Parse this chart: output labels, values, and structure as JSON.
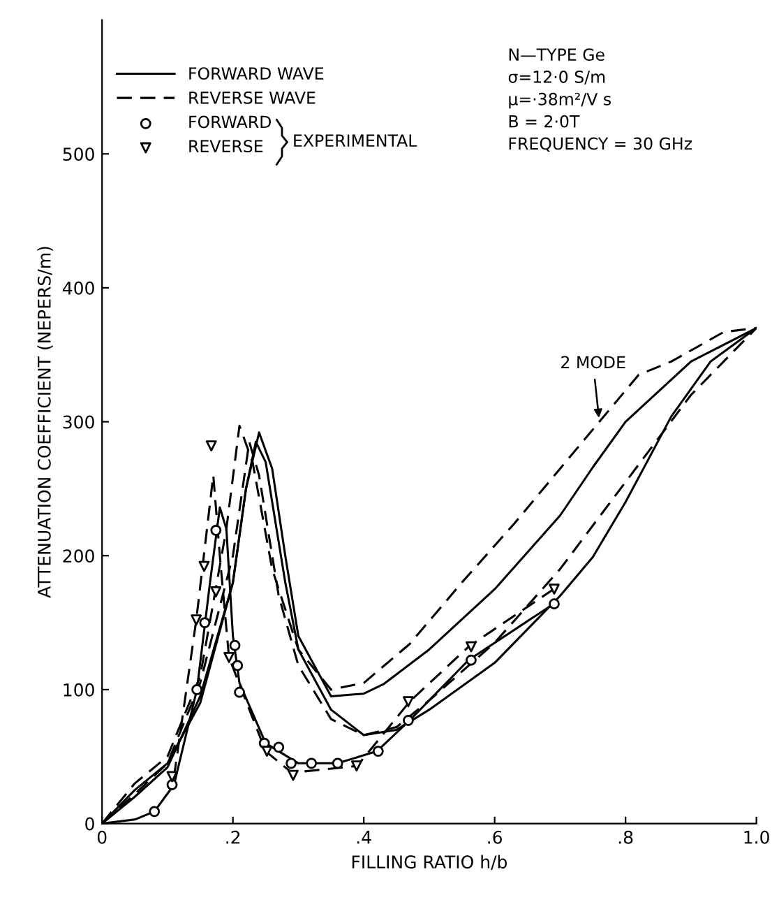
{
  "chart_data": {
    "type": "line",
    "xlabel": "FILLING RATIO h/b",
    "ylabel": "ATTENUATION COEFFICIENT (NEPERS/m)",
    "xlim": [
      0,
      1.0
    ],
    "ylim": [
      0,
      600
    ],
    "xticks": [
      0,
      {
        "value": 0.2,
        "label": ".2"
      },
      {
        "value": 0.4,
        "label": ".4"
      },
      {
        "value": 0.6,
        "label": ".6"
      },
      {
        "value": 0.8,
        "label": ".8"
      },
      {
        "value": 1.0,
        "label": "1.0"
      }
    ],
    "yticks": [
      0,
      100,
      200,
      300,
      400,
      500
    ],
    "grid": false,
    "legend": "top left",
    "series": [
      {
        "name": "FORWARD WAVE",
        "color": "#000000",
        "line_style": "solid",
        "x": [
          0,
          0.05,
          0.1,
          0.15,
          0.2,
          0.22,
          0.24,
          0.26,
          0.28,
          0.3,
          0.35,
          0.4,
          0.43,
          0.5,
          0.6,
          0.7,
          0.75,
          0.8,
          0.9,
          1.0
        ],
        "values": [
          0,
          25,
          45,
          90,
          180,
          250,
          292,
          265,
          200,
          140,
          95,
          97,
          104,
          130,
          175,
          230,
          266,
          300,
          345,
          370
        ]
      },
      {
        "color": "#000000",
        "line_style": "solid",
        "x": [
          0,
          0.05,
          0.1,
          0.15,
          0.2,
          0.22,
          0.235,
          0.25,
          0.28,
          0.3,
          0.35,
          0.4,
          0.45,
          0.5,
          0.6,
          0.7,
          0.75,
          0.8,
          0.87,
          0.93,
          1.0
        ],
        "values": [
          0,
          20,
          42,
          95,
          180,
          250,
          285,
          270,
          180,
          130,
          85,
          66,
          70,
          85,
          120,
          170,
          199,
          240,
          304,
          345,
          370
        ]
      },
      {
        "name": "REVERSE WAVE",
        "color": "#000000",
        "line_style": "dashed",
        "x": [
          0,
          0.05,
          0.1,
          0.15,
          0.19,
          0.21,
          0.23,
          0.26,
          0.3,
          0.35,
          0.4,
          0.47,
          0.55,
          0.63,
          0.7,
          0.76,
          0.82,
          0.87,
          0.95,
          1.0
        ],
        "values": [
          0,
          30,
          50,
          110,
          220,
          297,
          270,
          190,
          130,
          100,
          105,
          134,
          180,
          224,
          265,
          300,
          335,
          345,
          367,
          370
        ]
      },
      {
        "color": "#000000",
        "line_style": "dashed",
        "x": [
          0,
          0.05,
          0.1,
          0.15,
          0.2,
          0.225,
          0.24,
          0.27,
          0.3,
          0.35,
          0.4,
          0.45,
          0.5,
          0.6,
          0.7,
          0.8,
          0.9,
          1.0
        ],
        "values": [
          0,
          22,
          45,
          105,
          200,
          285,
          260,
          170,
          118,
          78,
          66,
          72,
          92,
          135,
          190,
          255,
          320,
          370
        ]
      },
      {
        "color": "#000000",
        "line_style": "solid",
        "x": [
          0,
          0.05,
          0.08,
          0.11,
          0.145,
          0.165,
          0.18,
          0.19,
          0.2,
          0.21,
          0.25,
          0.3,
          0.36,
          0.42,
          0.47,
          0.56,
          0.69
        ],
        "values": [
          0,
          3,
          9,
          29,
          100,
          180,
          236,
          220,
          140,
          105,
          60,
          45,
          45,
          54,
          77,
          122,
          164
        ]
      },
      {
        "color": "#000000",
        "line_style": "dashed",
        "x": [
          0.11,
          0.144,
          0.17,
          0.18,
          0.194,
          0.25,
          0.29,
          0.39,
          0.47,
          0.56,
          0.69
        ],
        "values": [
          35,
          152,
          260,
          200,
          124,
          54,
          38,
          43,
          91,
          132,
          175
        ]
      },
      {
        "name": "FORWARD",
        "type": "scatter",
        "marker": "circle",
        "color": "#000000",
        "x": [
          0.08,
          0.107,
          0.145,
          0.157,
          0.174,
          0.203,
          0.207,
          0.21,
          0.248,
          0.27,
          0.289,
          0.32,
          0.36,
          0.422,
          0.468,
          0.564,
          0.691
        ],
        "values": [
          9,
          29,
          100,
          150,
          219,
          133,
          118,
          98,
          60,
          57,
          45,
          45,
          45,
          54,
          77,
          122,
          164
        ]
      },
      {
        "name": "REVERSE",
        "type": "scatter",
        "marker": "triangle",
        "color": "#000000",
        "x": [
          0.107,
          0.144,
          0.156,
          0.167,
          0.174,
          0.194,
          0.252,
          0.292,
          0.389,
          0.468,
          0.564,
          0.691
        ],
        "values": [
          35,
          152,
          192,
          282,
          173,
          124,
          54,
          36,
          43,
          91,
          132,
          175
        ]
      }
    ],
    "annotations": [
      "N—TYPE Ge\nσ=12·0 S/m\nμ=·38m²/V s\nB = 2·0T\nFREQUENCY = 30 GHz",
      "EXPERIMENTAL",
      {
        "text": "2 MODE",
        "x": 0.76,
        "y": 300
      }
    ]
  }
}
